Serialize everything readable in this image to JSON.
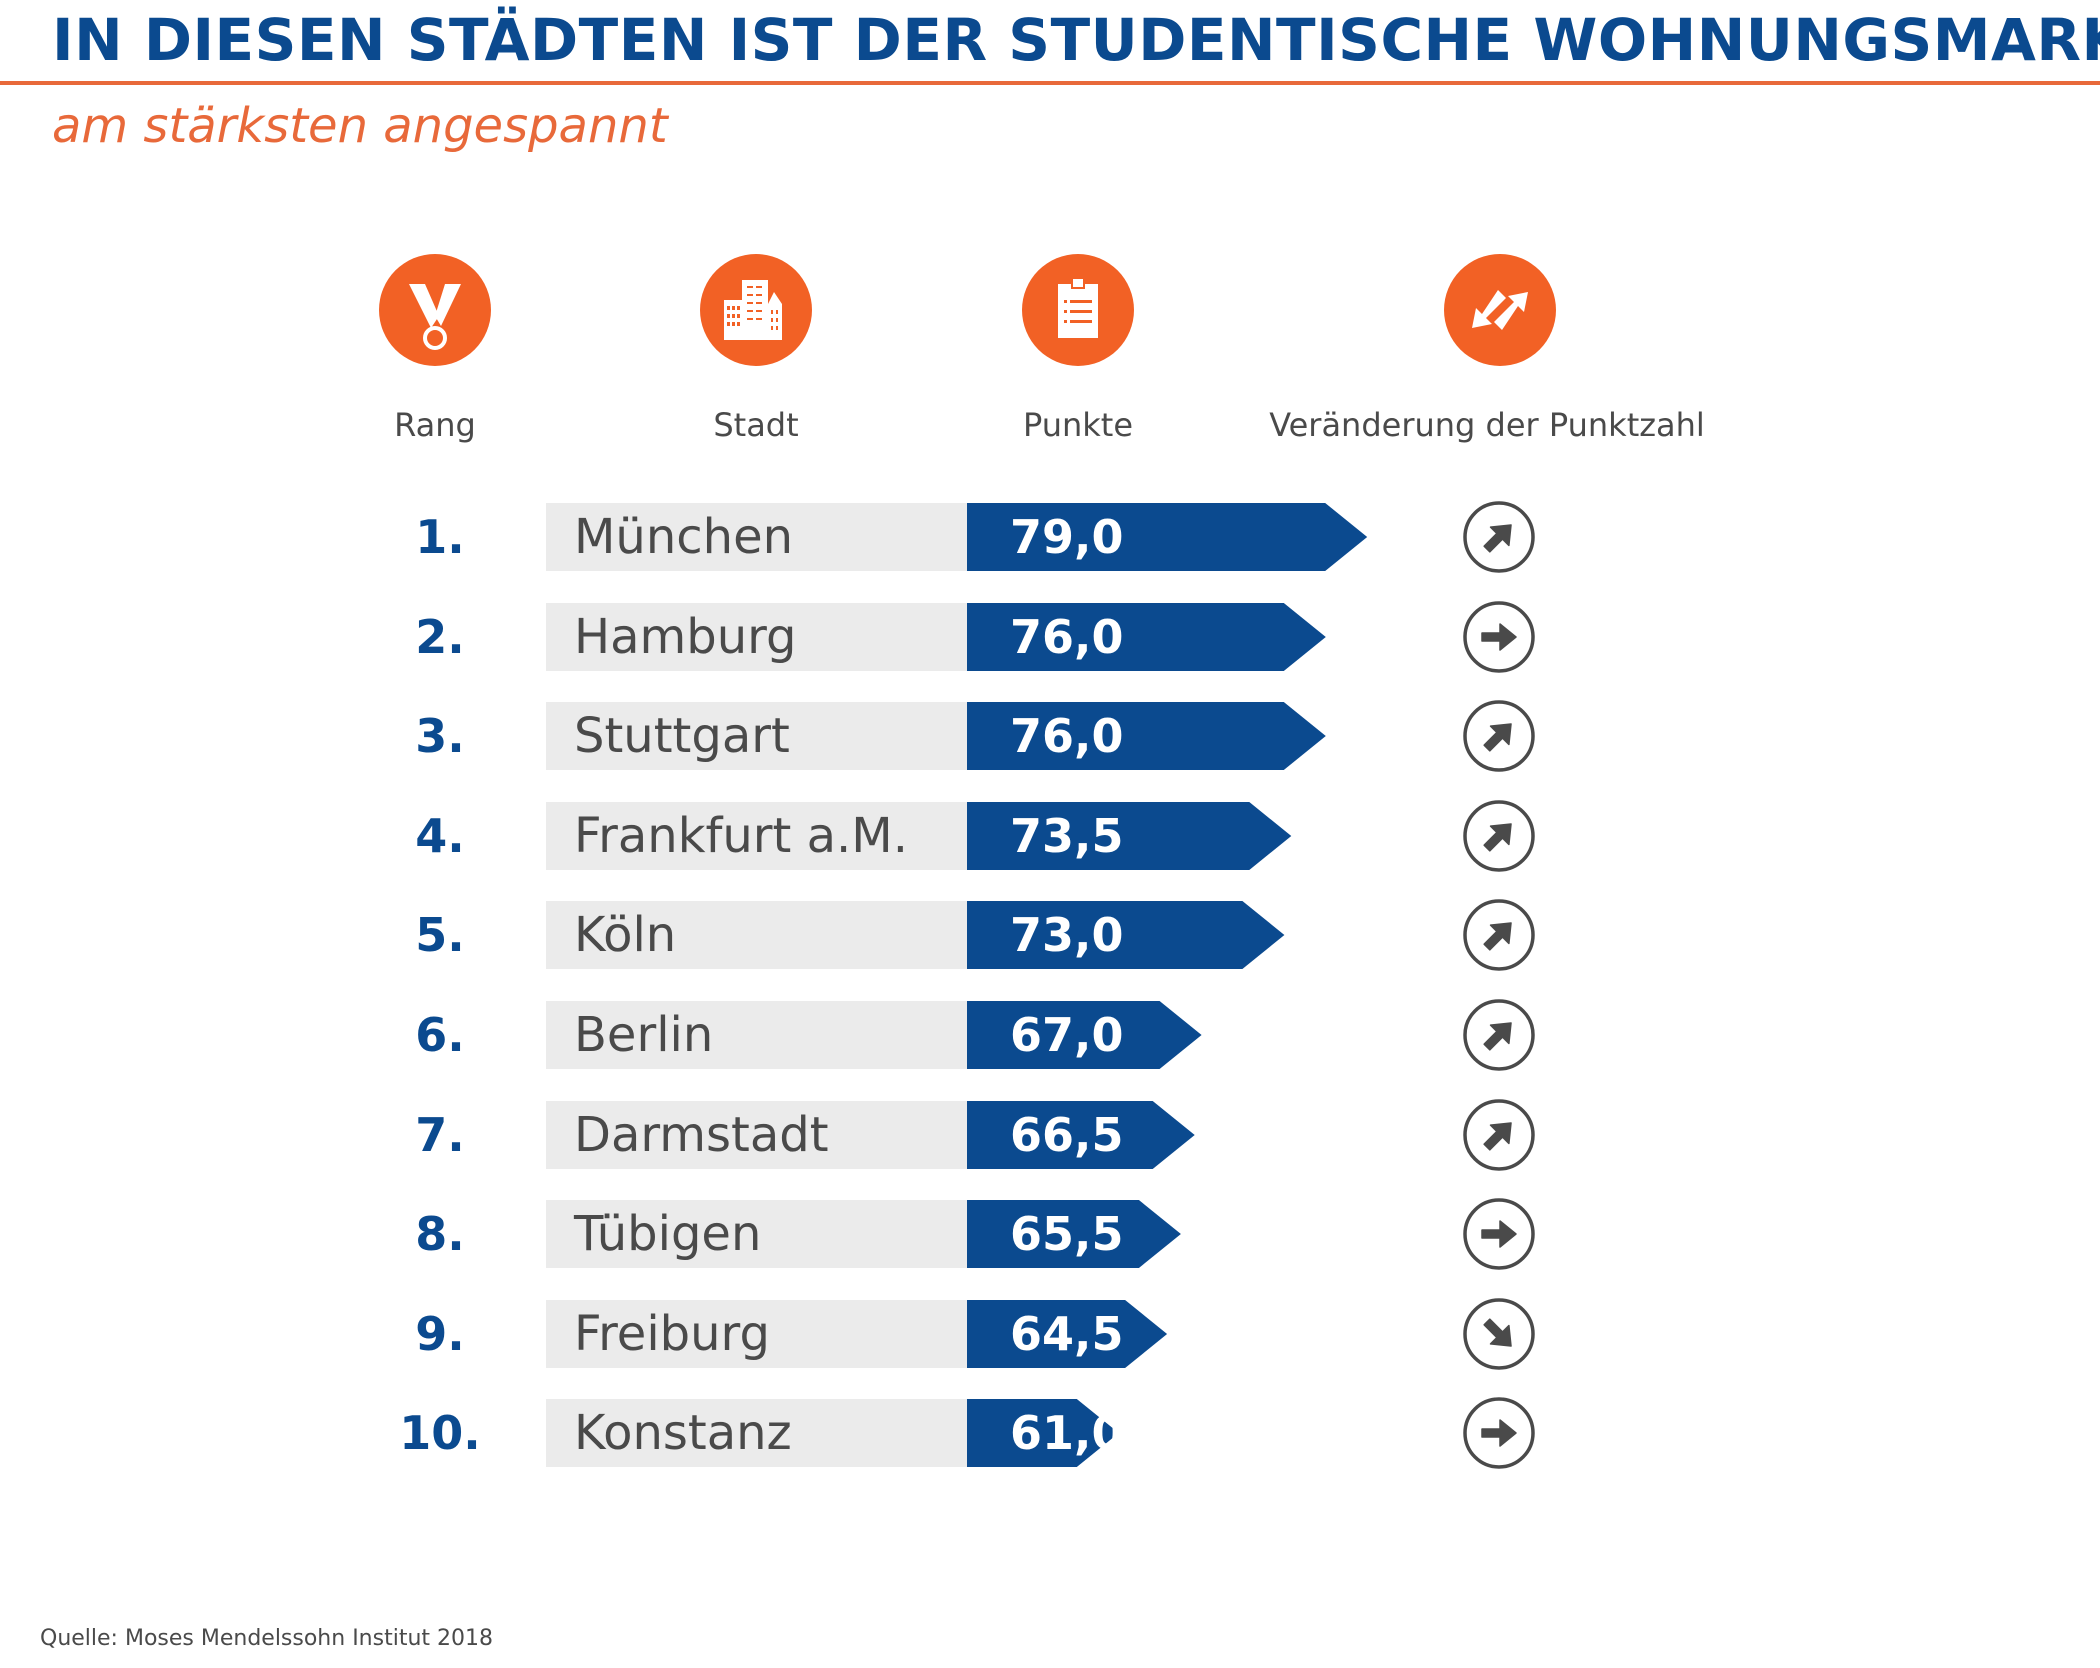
{
  "header": {
    "title": "IN DIESEN STÄDTEN IST DER STUDENTISCHE WOHNUNGSMARKT",
    "subtitle": "am stärksten angespannt"
  },
  "columns": [
    {
      "label": "Rang",
      "icon": "medal-icon"
    },
    {
      "label": "Stadt",
      "icon": "buildings-icon"
    },
    {
      "label": "Punkte",
      "icon": "clipboard-icon"
    },
    {
      "label": "Veränderung der Punktzahl",
      "icon": "swap-arrows-icon"
    }
  ],
  "colors": {
    "title_blue": "#0b4a8f",
    "accent_orange": "#f26125",
    "bar_blue": "#0b4a8f",
    "row_grey": "#ebebeb",
    "text_grey": "#4a4a4a"
  },
  "chart_data": {
    "type": "table",
    "title": "IN DIESEN STÄDTEN IST DER STUDENTISCHE WOHNUNGSMARKT am stärksten angespannt",
    "columns": [
      "Rang",
      "Stadt",
      "Punkte",
      "Veränderung der Punktzahl"
    ],
    "rows": [
      {
        "rank": "1.",
        "city": "München",
        "score": 79.0,
        "score_label": "79,0",
        "trend": "up"
      },
      {
        "rank": "2.",
        "city": "Hamburg",
        "score": 76.0,
        "score_label": "76,0",
        "trend": "flat"
      },
      {
        "rank": "3.",
        "city": "Stuttgart",
        "score": 76.0,
        "score_label": "76,0",
        "trend": "up"
      },
      {
        "rank": "4.",
        "city": "Frankfurt a.M.",
        "score": 73.5,
        "score_label": "73,5",
        "trend": "up"
      },
      {
        "rank": "5.",
        "city": "Köln",
        "score": 73.0,
        "score_label": "73,0",
        "trend": "up"
      },
      {
        "rank": "6.",
        "city": "Berlin",
        "score": 67.0,
        "score_label": "67,0",
        "trend": "up"
      },
      {
        "rank": "7.",
        "city": "Darmstadt",
        "score": 66.5,
        "score_label": "66,5",
        "trend": "up"
      },
      {
        "rank": "8.",
        "city": "Tübigen",
        "score": 65.5,
        "score_label": "65,5",
        "trend": "flat"
      },
      {
        "rank": "9.",
        "city": "Freiburg",
        "score": 64.5,
        "score_label": "64,5",
        "trend": "down"
      },
      {
        "rank": "10.",
        "city": "Konstanz",
        "score": 61.0,
        "score_label": "61,0",
        "trend": "flat"
      }
    ]
  },
  "footer": {
    "source": "Quelle: Moses Mendelssohn Institut 2018"
  }
}
